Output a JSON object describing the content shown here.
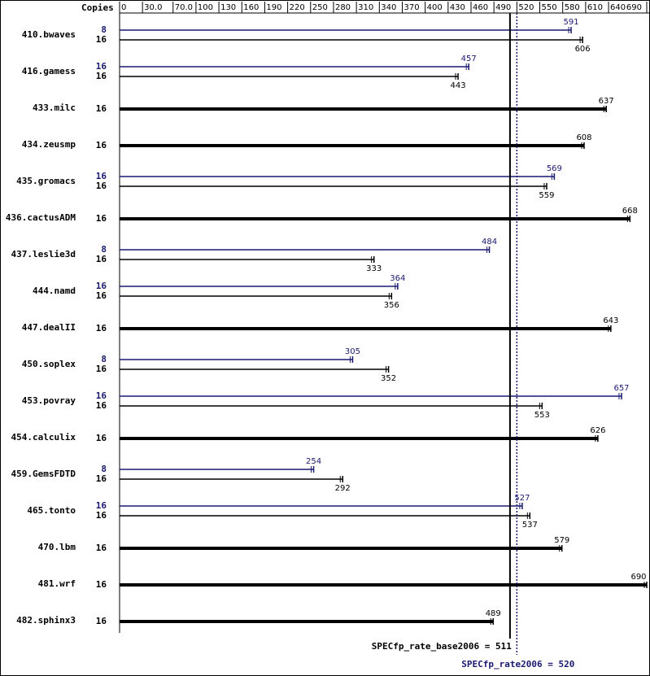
{
  "chart_data": {
    "type": "bar",
    "copies_label": "Copies",
    "categories": [
      "410.bwaves",
      "416.gamess",
      "433.milc",
      "434.zeusmp",
      "435.gromacs",
      "436.cactusADM",
      "437.leslie3d",
      "444.namd",
      "447.dealII",
      "450.soplex",
      "453.povray",
      "454.calculix",
      "459.GemsFDTD",
      "465.tonto",
      "470.lbm",
      "481.wrf",
      "482.sphinx3"
    ],
    "base_copies": [
      16,
      16,
      16,
      16,
      16,
      16,
      16,
      16,
      16,
      16,
      16,
      16,
      16,
      16,
      16,
      16,
      16
    ],
    "base_values": [
      606,
      443,
      637,
      608,
      559,
      668,
      333,
      356,
      643,
      352,
      553,
      626,
      292,
      537,
      579,
      690,
      489
    ],
    "peak_copies": [
      8,
      16,
      null,
      null,
      16,
      null,
      8,
      16,
      null,
      8,
      16,
      null,
      8,
      16,
      null,
      null,
      null
    ],
    "peak_values": [
      591,
      457,
      null,
      null,
      569,
      null,
      484,
      364,
      null,
      305,
      657,
      null,
      254,
      527,
      null,
      null,
      null
    ],
    "base_color": "#000000",
    "peak_color": "#191970",
    "xlim": [
      0,
      690
    ],
    "xticks": [
      0,
      {
        "value": 30,
        "label": "30.0"
      },
      {
        "value": 70,
        "label": "70.0"
      },
      100,
      130,
      160,
      190,
      220,
      250,
      280,
      310,
      340,
      370,
      400,
      430,
      460,
      490,
      520,
      550,
      580,
      610,
      640,
      690
    ],
    "base_metric": {
      "label": "SPECfp_rate_base2006 = 511",
      "value": 511
    },
    "peak_metric": {
      "label": "SPECfp_rate2006 = 520",
      "value": 520
    }
  }
}
